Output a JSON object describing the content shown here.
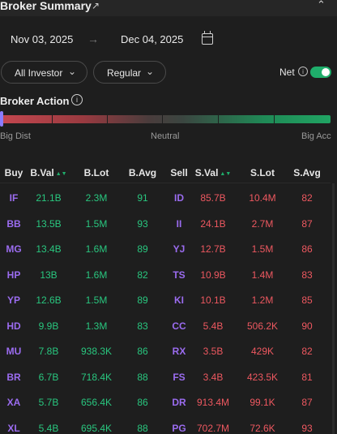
{
  "header": {
    "title": "Broker Summary",
    "external_icon": "external-link-icon",
    "collapse_icon": "chevron-up-icon"
  },
  "dates": {
    "start": "Nov 03, 2025",
    "end": "Dec 04, 2025",
    "arrow": "→",
    "calendar_icon": "calendar-icon"
  },
  "filters": {
    "investor": "All Investor",
    "market": "Regular",
    "net_label": "Net",
    "net_enabled": true
  },
  "broker_action": {
    "title": "Broker Action",
    "labels": {
      "left": "Big Dist",
      "center": "Neutral",
      "right": "Big Acc"
    },
    "level": 0.0
  },
  "table": {
    "headers": {
      "buy": "Buy",
      "bval": "B.Val",
      "blot": "B.Lot",
      "bavg": "B.Avg",
      "sell": "Sell",
      "sval": "S.Val",
      "slot": "S.Lot",
      "savg": "S.Avg"
    },
    "rows": [
      {
        "buy": "IF",
        "bval": "21.1B",
        "blot": "2.3M",
        "bavg": "91",
        "sell": "ID",
        "sval": "85.7B",
        "slot": "10.4M",
        "savg": "82"
      },
      {
        "buy": "BB",
        "bval": "13.5B",
        "blot": "1.5M",
        "bavg": "93",
        "sell": "II",
        "sval": "24.1B",
        "slot": "2.7M",
        "savg": "87"
      },
      {
        "buy": "MG",
        "bval": "13.4B",
        "blot": "1.6M",
        "bavg": "89",
        "sell": "YJ",
        "sval": "12.7B",
        "slot": "1.5M",
        "savg": "86"
      },
      {
        "buy": "HP",
        "bval": "13B",
        "blot": "1.6M",
        "bavg": "82",
        "sell": "TS",
        "sval": "10.9B",
        "slot": "1.4M",
        "savg": "83"
      },
      {
        "buy": "YP",
        "bval": "12.6B",
        "blot": "1.5M",
        "bavg": "89",
        "sell": "KI",
        "sval": "10.1B",
        "slot": "1.2M",
        "savg": "85"
      },
      {
        "buy": "HD",
        "bval": "9.9B",
        "blot": "1.3M",
        "bavg": "83",
        "sell": "CC",
        "sval": "5.4B",
        "slot": "506.2K",
        "savg": "90"
      },
      {
        "buy": "MU",
        "bval": "7.8B",
        "blot": "938.3K",
        "bavg": "86",
        "sell": "RX",
        "sval": "3.5B",
        "slot": "429K",
        "savg": "82"
      },
      {
        "buy": "BR",
        "bval": "6.7B",
        "blot": "718.4K",
        "bavg": "88",
        "sell": "FS",
        "sval": "3.4B",
        "slot": "423.5K",
        "savg": "81"
      },
      {
        "buy": "XA",
        "bval": "5.7B",
        "blot": "656.4K",
        "bavg": "86",
        "sell": "DR",
        "sval": "913.4M",
        "slot": "99.1K",
        "savg": "87"
      },
      {
        "buy": "XL",
        "bval": "5.4B",
        "blot": "695.4K",
        "bavg": "88",
        "sell": "PG",
        "sval": "702.7M",
        "slot": "72.6K",
        "savg": "93"
      }
    ]
  },
  "colors": {
    "background": "#1e1e1e",
    "buy_value": "#29c77f",
    "sell_value": "#ee5860",
    "broker_code": "#9b6cf0",
    "accent": "#1fae6b"
  }
}
